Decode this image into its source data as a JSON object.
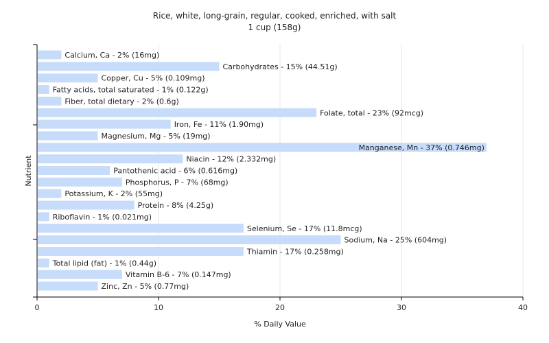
{
  "chart_data": {
    "type": "bar",
    "orientation": "horizontal",
    "title": "Rice, white, long-grain, regular, cooked, enriched, with salt",
    "subtitle": "1 cup (158g)",
    "xlabel": "% Daily Value",
    "ylabel": "Nutrient",
    "xlim": [
      0,
      40
    ],
    "xticks": [
      "0",
      "10",
      "20",
      "30",
      "40"
    ],
    "grid": true,
    "bar_color": "#c6dcfa",
    "categories": [
      "Calcium, Ca - 2% (16mg)",
      "Carbohydrates - 15% (44.51g)",
      "Copper, Cu - 5% (0.109mg)",
      "Fatty acids, total saturated - 1% (0.122g)",
      "Fiber, total dietary - 2% (0.6g)",
      "Folate, total - 23% (92mcg)",
      "Iron, Fe - 11% (1.90mg)",
      "Magnesium, Mg - 5% (19mg)",
      "Manganese, Mn - 37% (0.746mg)",
      "Niacin - 12% (2.332mg)",
      "Pantothenic acid - 6% (0.616mg)",
      "Phosphorus, P - 7% (68mg)",
      "Potassium, K - 2% (55mg)",
      "Protein - 8% (4.25g)",
      "Riboflavin - 1% (0.021mg)",
      "Selenium, Se - 17% (11.8mcg)",
      "Sodium, Na - 25% (604mg)",
      "Thiamin - 17% (0.258mg)",
      "Total lipid (fat) - 1% (0.44g)",
      "Vitamin B-6 - 7% (0.147mg)",
      "Zinc, Zn - 5% (0.77mg)"
    ],
    "values": [
      2,
      15,
      5,
      1,
      2,
      23,
      11,
      5,
      37,
      12,
      6,
      7,
      2,
      8,
      1,
      17,
      25,
      17,
      1,
      7,
      5
    ]
  }
}
